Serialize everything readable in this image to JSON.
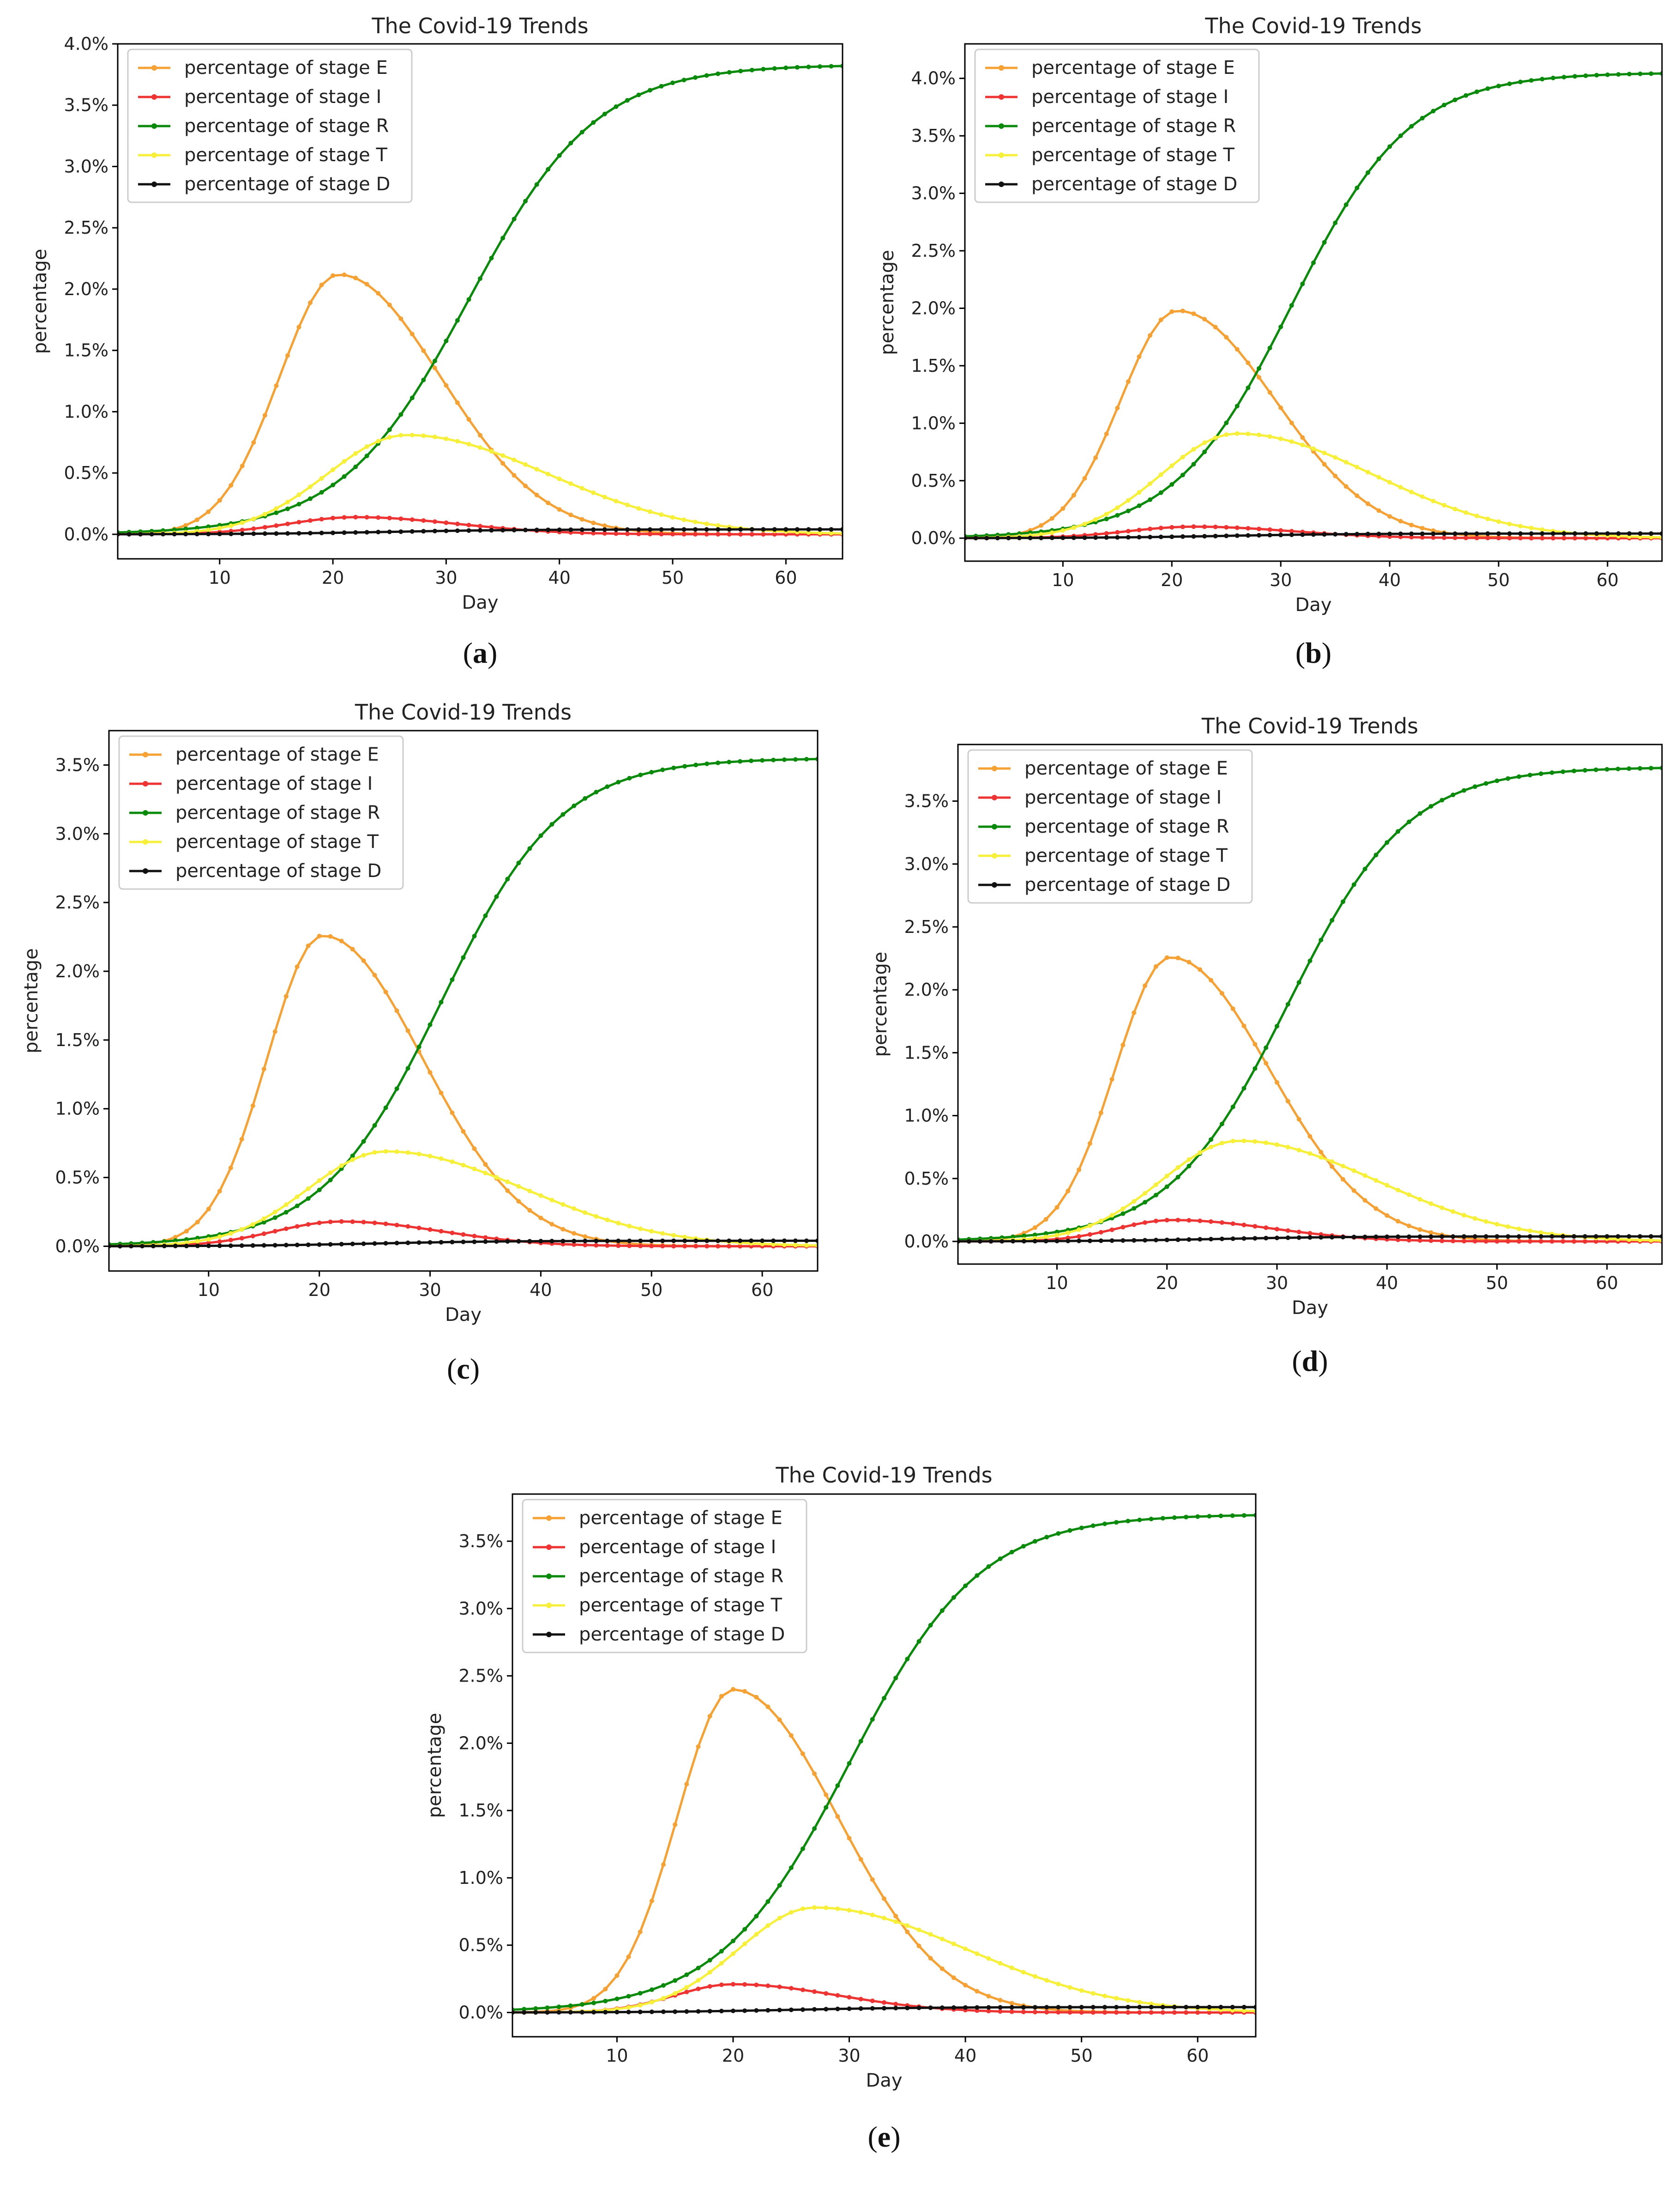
{
  "chart_data": [
    {
      "id": "a",
      "type": "line",
      "title": "The Covid-19 Trends",
      "xlabel": "Day",
      "ylabel": "percentage",
      "caption": "a",
      "xlim": [
        1,
        65
      ],
      "ylim": [
        -0.2,
        4.0
      ],
      "xticks": [
        10,
        20,
        30,
        40,
        50,
        60
      ],
      "xtick_labels": [
        "10",
        "20",
        "30",
        "40",
        "50",
        "60"
      ],
      "yticks": [
        0,
        0.5,
        1,
        1.5,
        2,
        2.5,
        3,
        3.5,
        4
      ],
      "ytick_labels": [
        "0.0%",
        "0.5%",
        "1.0%",
        "1.5%",
        "2.0%",
        "2.5%",
        "3.0%",
        "3.5%",
        "4.0%"
      ],
      "legend_position": "upper-left",
      "series": [
        {
          "name": "percentage of stage E",
          "color": "#f5a133",
          "model": "pulse",
          "peak": 2.12,
          "peak_day": 20.5,
          "rise": 5.2,
          "fall": 9.0
        },
        {
          "name": "percentage of stage I",
          "color": "#ee3333",
          "model": "pulse",
          "peak": 0.14,
          "peak_day": 22,
          "rise": 6.0,
          "fall": 9.0
        },
        {
          "name": "percentage of stage R",
          "color": "#0a8a0a",
          "model": "sigmoid",
          "final": 3.83,
          "mid": 32,
          "scale": 5.6
        },
        {
          "name": "percentage of stage T",
          "color": "#f7f03a",
          "model": "pulse",
          "peak": 0.81,
          "peak_day": 26.5,
          "rise": 7.0,
          "fall": 12.5
        },
        {
          "name": "percentage of stage D",
          "color": "#111111",
          "model": "sigmoid",
          "final": 0.04,
          "mid": 25,
          "scale": 6.0
        }
      ]
    },
    {
      "id": "b",
      "type": "line",
      "title": "The Covid-19 Trends",
      "xlabel": "Day",
      "ylabel": "percentage",
      "caption": "b",
      "xlim": [
        1,
        65
      ],
      "ylim": [
        -0.2,
        4.3
      ],
      "xticks": [
        10,
        20,
        30,
        40,
        50,
        60
      ],
      "xtick_labels": [
        "10",
        "20",
        "30",
        "40",
        "50",
        "60"
      ],
      "yticks": [
        0,
        0.5,
        1,
        1.5,
        2,
        2.5,
        3,
        3.5,
        4
      ],
      "ytick_labels": [
        "0.0%",
        "0.5%",
        "1.0%",
        "1.5%",
        "2.0%",
        "2.5%",
        "3.0%",
        "3.5%",
        "4.0%"
      ],
      "legend_position": "upper-left",
      "series": [
        {
          "name": "percentage of stage E",
          "color": "#f5a133",
          "model": "pulse",
          "peak": 1.98,
          "peak_day": 20.5,
          "rise": 5.2,
          "fall": 9.0
        },
        {
          "name": "percentage of stage I",
          "color": "#ee3333",
          "model": "pulse",
          "peak": 0.1,
          "peak_day": 22,
          "rise": 6.0,
          "fall": 9.0
        },
        {
          "name": "percentage of stage R",
          "color": "#0a8a0a",
          "model": "sigmoid",
          "final": 4.05,
          "mid": 31,
          "scale": 5.4
        },
        {
          "name": "percentage of stage T",
          "color": "#f7f03a",
          "model": "pulse",
          "peak": 0.91,
          "peak_day": 26,
          "rise": 7.0,
          "fall": 12.5
        },
        {
          "name": "percentage of stage D",
          "color": "#111111",
          "model": "sigmoid",
          "final": 0.04,
          "mid": 25,
          "scale": 6.0
        }
      ]
    },
    {
      "id": "c",
      "type": "line",
      "title": "The Covid-19 Trends",
      "xlabel": "Day",
      "ylabel": "percentage",
      "caption": "c",
      "xlim": [
        1,
        65
      ],
      "ylim": [
        -0.18,
        3.75
      ],
      "xticks": [
        10,
        20,
        30,
        40,
        50,
        60
      ],
      "xtick_labels": [
        "10",
        "20",
        "30",
        "40",
        "50",
        "60"
      ],
      "yticks": [
        0,
        0.5,
        1,
        1.5,
        2,
        2.5,
        3,
        3.5
      ],
      "ytick_labels": [
        "0.0%",
        "0.5%",
        "1.0%",
        "1.5%",
        "2.0%",
        "2.5%",
        "3.0%",
        "3.5%"
      ],
      "legend_position": "upper-left",
      "series": [
        {
          "name": "percentage of stage E",
          "color": "#f5a133",
          "model": "pulse",
          "peak": 2.26,
          "peak_day": 20.3,
          "rise": 5.0,
          "fall": 9.0
        },
        {
          "name": "percentage of stage I",
          "color": "#ee3333",
          "model": "pulse",
          "peak": 0.18,
          "peak_day": 22,
          "rise": 6.0,
          "fall": 9.0
        },
        {
          "name": "percentage of stage R",
          "color": "#0a8a0a",
          "model": "sigmoid",
          "final": 3.55,
          "mid": 31,
          "scale": 5.4
        },
        {
          "name": "percentage of stage T",
          "color": "#f7f03a",
          "model": "pulse",
          "peak": 0.69,
          "peak_day": 26,
          "rise": 7.0,
          "fall": 12.5
        },
        {
          "name": "percentage of stage D",
          "color": "#111111",
          "model": "sigmoid",
          "final": 0.04,
          "mid": 25,
          "scale": 6.0
        }
      ]
    },
    {
      "id": "d",
      "type": "line",
      "title": "The Covid-19 Trends",
      "xlabel": "Day",
      "ylabel": "percentage",
      "caption": "d",
      "xlim": [
        1,
        65
      ],
      "ylim": [
        -0.18,
        3.95
      ],
      "xticks": [
        10,
        20,
        30,
        40,
        50,
        60
      ],
      "xtick_labels": [
        "10",
        "20",
        "30",
        "40",
        "50",
        "60"
      ],
      "yticks": [
        0,
        0.5,
        1,
        1.5,
        2,
        2.5,
        3,
        3.5
      ],
      "ytick_labels": [
        "0.0%",
        "0.5%",
        "1.0%",
        "1.5%",
        "2.0%",
        "2.5%",
        "3.0%",
        "3.5%"
      ],
      "legend_position": "upper-left",
      "series": [
        {
          "name": "percentage of stage E",
          "color": "#f5a133",
          "model": "pulse",
          "peak": 2.26,
          "peak_day": 20.3,
          "rise": 5.0,
          "fall": 9.0
        },
        {
          "name": "percentage of stage I",
          "color": "#ee3333",
          "model": "pulse",
          "peak": 0.17,
          "peak_day": 20.5,
          "rise": 5.0,
          "fall": 9.0
        },
        {
          "name": "percentage of stage R",
          "color": "#0a8a0a",
          "model": "sigmoid",
          "final": 3.77,
          "mid": 31,
          "scale": 5.4
        },
        {
          "name": "percentage of stage T",
          "color": "#f7f03a",
          "model": "pulse",
          "peak": 0.8,
          "peak_day": 26.5,
          "rise": 7.0,
          "fall": 12.5
        },
        {
          "name": "percentage of stage D",
          "color": "#111111",
          "model": "sigmoid",
          "final": 0.04,
          "mid": 25,
          "scale": 6.0
        }
      ]
    },
    {
      "id": "e",
      "type": "line",
      "title": "The Covid-19 Trends",
      "xlabel": "Day",
      "ylabel": "percentage",
      "caption": "e",
      "xlim": [
        1,
        65
      ],
      "ylim": [
        -0.18,
        3.85
      ],
      "xticks": [
        10,
        20,
        30,
        40,
        50,
        60
      ],
      "xtick_labels": [
        "10",
        "20",
        "30",
        "40",
        "50",
        "60"
      ],
      "yticks": [
        0,
        0.5,
        1,
        1.5,
        2,
        2.5,
        3,
        3.5
      ],
      "ytick_labels": [
        "0.0%",
        "0.5%",
        "1.0%",
        "1.5%",
        "2.0%",
        "2.5%",
        "3.0%",
        "3.5%"
      ],
      "legend_position": "upper-left",
      "series": [
        {
          "name": "percentage of stage E",
          "color": "#f5a133",
          "model": "pulse",
          "peak": 2.4,
          "peak_day": 20,
          "rise": 4.8,
          "fall": 9.0
        },
        {
          "name": "percentage of stage I",
          "color": "#ee3333",
          "model": "pulse",
          "peak": 0.21,
          "peak_day": 20,
          "rise": 5.0,
          "fall": 9.0
        },
        {
          "name": "percentage of stage R",
          "color": "#0a8a0a",
          "model": "sigmoid",
          "final": 3.7,
          "mid": 30,
          "scale": 5.6
        },
        {
          "name": "percentage of stage T",
          "color": "#f7f03a",
          "model": "pulse",
          "peak": 0.78,
          "peak_day": 27,
          "rise": 6.5,
          "fall": 13.0
        },
        {
          "name": "percentage of stage D",
          "color": "#111111",
          "model": "sigmoid",
          "final": 0.04,
          "mid": 25,
          "scale": 6.0
        }
      ]
    }
  ]
}
